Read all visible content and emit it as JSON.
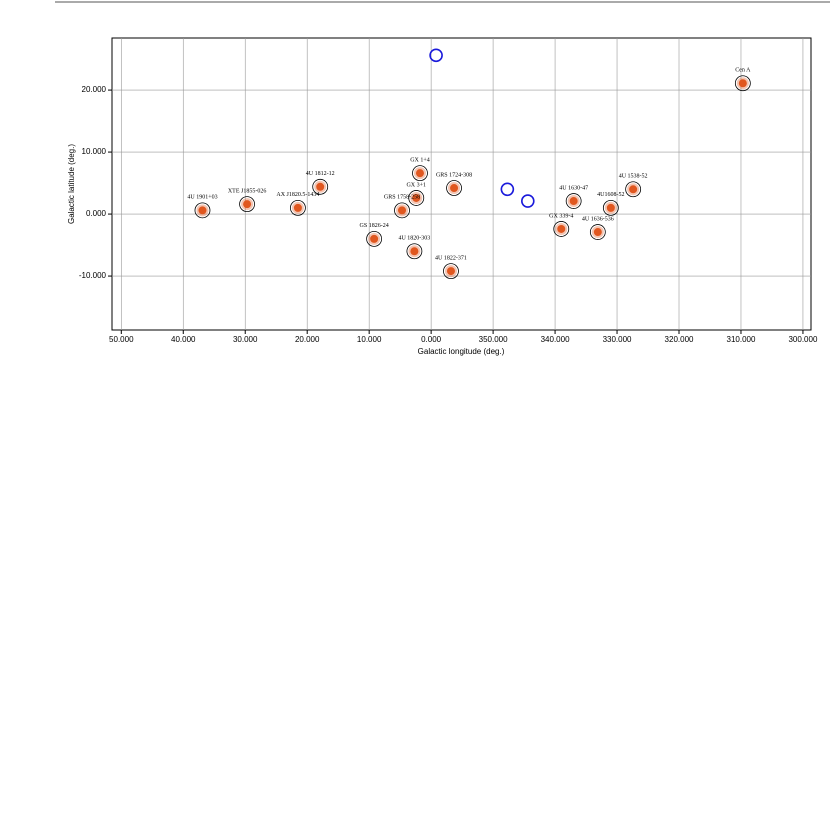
{
  "chart_data": {
    "type": "scatter",
    "xlabel": "Galactic longitude (deg.)",
    "ylabel": "Galactic latitude (deg.)",
    "xlim": [
      51.5,
      298.7
    ],
    "ylim": [
      -18.7,
      28.4
    ],
    "xticks": [
      {
        "value": 50,
        "label": "50.000"
      },
      {
        "value": 40,
        "label": "40.000"
      },
      {
        "value": 30,
        "label": "30.000"
      },
      {
        "value": 20,
        "label": "20.000"
      },
      {
        "value": 10,
        "label": "10.000"
      },
      {
        "value": 0,
        "label": "0.000"
      },
      {
        "value": 350,
        "label": "350.000"
      },
      {
        "value": 340,
        "label": "340.000"
      },
      {
        "value": 330,
        "label": "330.000"
      },
      {
        "value": 320,
        "label": "320.000"
      },
      {
        "value": 310,
        "label": "310.000"
      },
      {
        "value": 300,
        "label": "300.000"
      }
    ],
    "yticks": [
      {
        "value": 20,
        "label": "20.000"
      },
      {
        "value": 10,
        "label": "10.000"
      },
      {
        "value": 0,
        "label": "0.000"
      },
      {
        "value": -10,
        "label": "-10.000"
      }
    ],
    "grid": true,
    "series": [
      {
        "color": "#e0571f",
        "labels": [
          "Cen A",
          "4U 1538-52",
          "4U1608-52",
          "4U 1636-536",
          "4U 1630-47",
          "GX 339-4",
          "GRS 1724-308",
          "GX 3+1",
          "GX 1+4",
          "GRS 1758-258",
          "GS 1826-24",
          "4U 1820-303",
          "4U 1822-371",
          "4U 1812-12",
          "4U 1901+03",
          "XTE J1855-026",
          "AX J1820.5-1434"
        ],
        "x": [
          309.7,
          327.4,
          331.0,
          333.1,
          337.0,
          339.0,
          356.3,
          2.4,
          1.8,
          4.7,
          9.2,
          2.7,
          356.8,
          17.9,
          36.9,
          29.7,
          21.5
        ],
        "values": [
          21.1,
          4.0,
          1.0,
          -2.9,
          2.1,
          -2.4,
          4.2,
          2.6,
          6.6,
          0.6,
          -4.0,
          -6.0,
          -9.2,
          4.4,
          0.6,
          1.6,
          1.0
        ]
      },
      {
        "color": "#1a1adb",
        "x": [
          359.2,
          347.7,
          344.4
        ],
        "values": [
          25.6,
          4.0,
          2.1
        ]
      }
    ]
  }
}
